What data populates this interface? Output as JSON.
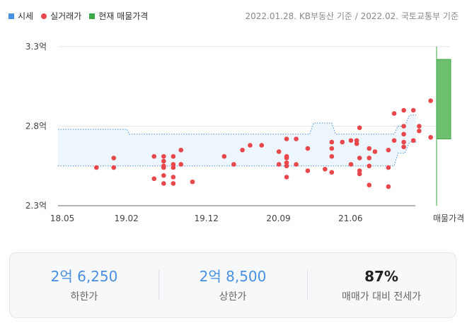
{
  "legend": {
    "items": [
      {
        "label": "시세",
        "color": "#4a90e2",
        "shape": "square"
      },
      {
        "label": "실거래가",
        "color": "#e8474c",
        "shape": "dot"
      },
      {
        "label": "현재 매물가격",
        "color": "#3aa845",
        "shape": "square"
      }
    ]
  },
  "source_note": "2022.01.28. KB부동산 기준 / 2022.02. 국토교통부 기준",
  "chart_data": {
    "type": "scatter",
    "y_unit": "억",
    "ylim": [
      2.3,
      3.3
    ],
    "y_ticks": [
      {
        "value": 3.3,
        "label": "3.3억"
      },
      {
        "value": 2.8,
        "label": "2.8억"
      },
      {
        "value": 2.3,
        "label": "2.3억"
      }
    ],
    "x_range": [
      2018.33,
      2022.22
    ],
    "x_ticks": [
      {
        "value": 2018.375,
        "label": "18.05"
      },
      {
        "value": 2019.042,
        "label": "19.02"
      },
      {
        "value": 2019.875,
        "label": "19.12"
      },
      {
        "value": 2020.625,
        "label": "20.09"
      },
      {
        "value": 2021.375,
        "label": "21.06"
      }
    ],
    "listing_label": "매물가격",
    "price_band": {
      "name": "시세",
      "color": "#4a90e2",
      "lower": [
        {
          "x": 2018.33,
          "y": 2.55
        },
        {
          "x": 2021.83,
          "y": 2.55
        },
        {
          "x": 2021.87,
          "y": 2.63
        },
        {
          "x": 2021.94,
          "y": 2.63
        },
        {
          "x": 2021.99,
          "y": 2.7
        },
        {
          "x": 2022.06,
          "y": 2.7
        }
      ],
      "upper": [
        {
          "x": 2018.33,
          "y": 2.78
        },
        {
          "x": 2019.05,
          "y": 2.78
        },
        {
          "x": 2019.07,
          "y": 2.75
        },
        {
          "x": 2020.95,
          "y": 2.75
        },
        {
          "x": 2020.99,
          "y": 2.82
        },
        {
          "x": 2021.18,
          "y": 2.82
        },
        {
          "x": 2021.22,
          "y": 2.75
        },
        {
          "x": 2021.83,
          "y": 2.75
        },
        {
          "x": 2021.87,
          "y": 2.8
        },
        {
          "x": 2021.94,
          "y": 2.8
        },
        {
          "x": 2021.99,
          "y": 2.87
        },
        {
          "x": 2022.06,
          "y": 2.87
        }
      ]
    },
    "listing_range": {
      "name": "현재 매물가격",
      "color": "#3aa845",
      "low": 2.72,
      "high": 3.22
    },
    "transactions": {
      "name": "실거래가",
      "color": "#e8474c",
      "points": [
        [
          2018.73,
          2.54
        ],
        [
          2018.91,
          2.6
        ],
        [
          2018.91,
          2.54
        ],
        [
          2019.33,
          2.61
        ],
        [
          2019.33,
          2.47
        ],
        [
          2019.43,
          2.61
        ],
        [
          2019.43,
          2.58
        ],
        [
          2019.43,
          2.55
        ],
        [
          2019.43,
          2.54
        ],
        [
          2019.43,
          2.49
        ],
        [
          2019.43,
          2.44
        ],
        [
          2019.53,
          2.61
        ],
        [
          2019.53,
          2.56
        ],
        [
          2019.53,
          2.54
        ],
        [
          2019.53,
          2.48
        ],
        [
          2019.53,
          2.44
        ],
        [
          2019.61,
          2.65
        ],
        [
          2019.61,
          2.56
        ],
        [
          2019.73,
          2.45
        ],
        [
          2020.06,
          2.61
        ],
        [
          2020.16,
          2.56
        ],
        [
          2020.25,
          2.65
        ],
        [
          2020.33,
          2.68
        ],
        [
          2020.45,
          2.68
        ],
        [
          2020.63,
          2.64
        ],
        [
          2020.63,
          2.56
        ],
        [
          2020.71,
          2.72
        ],
        [
          2020.71,
          2.61
        ],
        [
          2020.71,
          2.6
        ],
        [
          2020.71,
          2.57
        ],
        [
          2020.71,
          2.55
        ],
        [
          2020.71,
          2.48
        ],
        [
          2020.81,
          2.72
        ],
        [
          2020.81,
          2.56
        ],
        [
          2020.93,
          2.66
        ],
        [
          2020.93,
          2.52
        ],
        [
          2021.11,
          2.53
        ],
        [
          2021.18,
          2.7
        ],
        [
          2021.18,
          2.66
        ],
        [
          2021.18,
          2.61
        ],
        [
          2021.18,
          2.51
        ],
        [
          2021.29,
          2.7
        ],
        [
          2021.38,
          2.71
        ],
        [
          2021.38,
          2.56
        ],
        [
          2021.44,
          2.71
        ],
        [
          2021.44,
          2.69
        ],
        [
          2021.47,
          2.79
        ],
        [
          2021.47,
          2.6
        ],
        [
          2021.47,
          2.52
        ],
        [
          2021.47,
          2.5
        ],
        [
          2021.57,
          2.66
        ],
        [
          2021.57,
          2.6
        ],
        [
          2021.57,
          2.55
        ],
        [
          2021.57,
          2.43
        ],
        [
          2021.63,
          2.64
        ],
        [
          2021.77,
          2.65
        ],
        [
          2021.77,
          2.54
        ],
        [
          2021.77,
          2.42
        ],
        [
          2021.83,
          2.88
        ],
        [
          2021.83,
          2.71
        ],
        [
          2021.93,
          2.9
        ],
        [
          2021.93,
          2.8
        ],
        [
          2021.93,
          2.75
        ],
        [
          2021.93,
          2.7
        ],
        [
          2021.93,
          2.67
        ],
        [
          2022.03,
          2.9
        ],
        [
          2022.03,
          2.71
        ],
        [
          2022.09,
          2.8
        ],
        [
          2022.09,
          2.77
        ],
        [
          2022.21,
          2.96
        ],
        [
          2022.21,
          2.73
        ]
      ]
    }
  },
  "summary": {
    "stats": [
      {
        "value": "2억 6,250",
        "label": "하한가"
      },
      {
        "value": "2억 8,500",
        "label": "상한가"
      },
      {
        "value": "87%",
        "label": "매매가 대비 전세가"
      }
    ]
  }
}
